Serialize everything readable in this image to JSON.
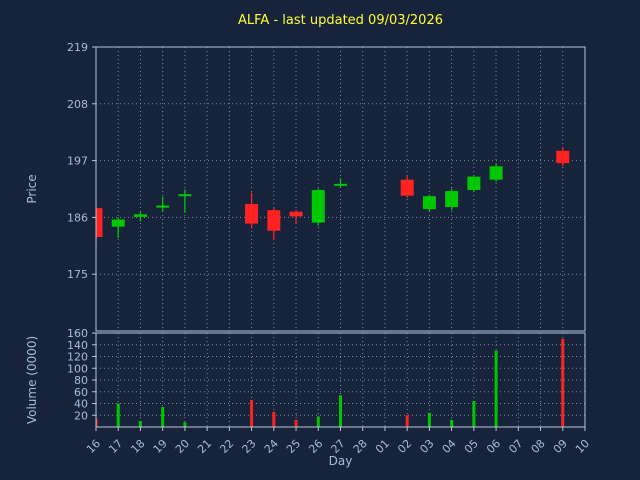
{
  "chart": {
    "title": "ALFA - last updated 09/03/2026",
    "colors": {
      "background": "#16233a",
      "title": "#ffff33",
      "tick_label": "#a3bedd",
      "spine": "#b9c6d8",
      "grid": "#7e8aa0",
      "up": "#00c800",
      "down": "#ff2222"
    }
  },
  "chart_data": {
    "type": "candlestick_with_volume",
    "title": "ALFA - last updated 09/03/2026",
    "xlabel": "Day",
    "ylabel_price": "Price",
    "ylabel_volume": "Volume (0000)",
    "grid": true,
    "x_tick_labels": [
      "16",
      "17",
      "18",
      "19",
      "20",
      "21",
      "22",
      "23",
      "24",
      "25",
      "26",
      "27",
      "28",
      "01",
      "02",
      "03",
      "04",
      "05",
      "06",
      "07",
      "08",
      "09",
      "10"
    ],
    "price_axis": {
      "ticks": [
        219,
        208,
        197,
        186,
        175
      ],
      "range": [
        164,
        219
      ]
    },
    "volume_axis": {
      "ticks": [
        160,
        140,
        120,
        100,
        80,
        60,
        40,
        20
      ],
      "range": [
        0,
        160
      ]
    },
    "series": [
      {
        "day": "16",
        "open": 187.8,
        "high": 188.2,
        "low": 181.3,
        "close": 182.2,
        "volume": 14
      },
      {
        "day": "17",
        "open": 184.2,
        "high": 186.0,
        "low": 182.0,
        "close": 185.6,
        "volume": 40
      },
      {
        "day": "18",
        "open": 186.1,
        "high": 187.2,
        "low": 185.2,
        "close": 186.6,
        "volume": 10
      },
      {
        "day": "19",
        "open": 187.9,
        "high": 190.0,
        "low": 187.1,
        "close": 188.3,
        "volume": 34
      },
      {
        "day": "20",
        "open": 190.1,
        "high": 191.4,
        "low": 186.9,
        "close": 190.5,
        "volume": 8
      },
      {
        "day": "23",
        "open": 188.6,
        "high": 190.8,
        "low": 183.9,
        "close": 184.8,
        "volume": 46
      },
      {
        "day": "24",
        "open": 187.4,
        "high": 187.8,
        "low": 181.6,
        "close": 183.4,
        "volume": 26
      },
      {
        "day": "25",
        "open": 187.1,
        "high": 187.4,
        "low": 184.8,
        "close": 186.2,
        "volume": 12
      },
      {
        "day": "26",
        "open": 185.0,
        "high": 191.6,
        "low": 184.4,
        "close": 191.3,
        "volume": 18
      },
      {
        "day": "27",
        "open": 192.2,
        "high": 193.6,
        "low": 191.9,
        "close": 192.5,
        "volume": 54
      },
      {
        "day": "02",
        "open": 193.3,
        "high": 194.0,
        "low": 189.8,
        "close": 190.2,
        "volume": 20
      },
      {
        "day": "03",
        "open": 187.6,
        "high": 190.4,
        "low": 187.0,
        "close": 190.1,
        "volume": 24
      },
      {
        "day": "04",
        "open": 188.0,
        "high": 191.6,
        "low": 187.4,
        "close": 191.1,
        "volume": 12
      },
      {
        "day": "05",
        "open": 191.3,
        "high": 194.2,
        "low": 190.9,
        "close": 193.9,
        "volume": 44
      },
      {
        "day": "06",
        "open": 193.3,
        "high": 196.4,
        "low": 192.9,
        "close": 195.9,
        "volume": 130
      },
      {
        "day": "09",
        "open": 198.9,
        "high": 199.6,
        "low": 195.9,
        "close": 196.5,
        "volume": 150
      }
    ]
  }
}
